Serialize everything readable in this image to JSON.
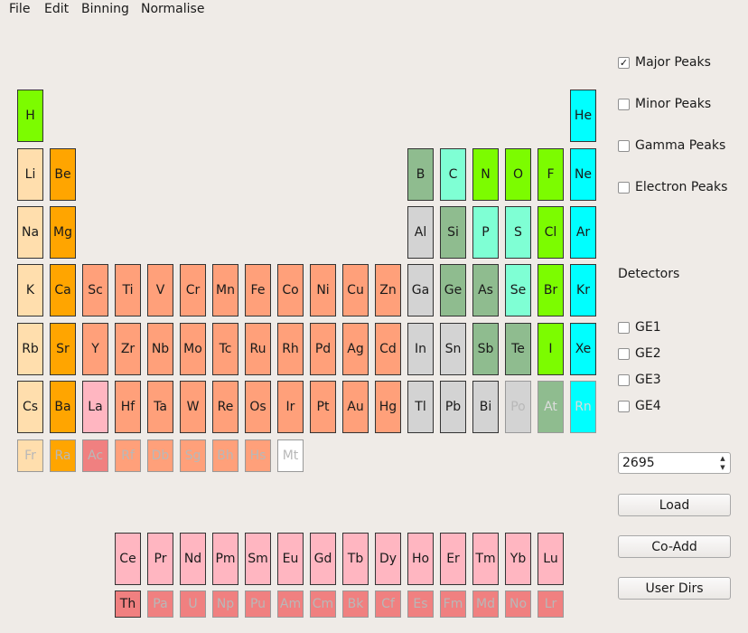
{
  "menu": [
    "File",
    "Edit",
    "Binning",
    "Normalise"
  ],
  "colors": {
    "alkali": "#ffdead",
    "alkaline_earth": "#ffa500",
    "transition": "#ffa07a",
    "post_transition": "#d3d3d3",
    "metalloid": "#8fbc8f",
    "nonmetal": "#7fffd4",
    "halogen": "#7cfc00",
    "noble_gas": "#00ffff",
    "lanthanide": "#ffb6c1",
    "actinide": "#f08080",
    "unknown": "#ffffff"
  },
  "elements": [
    {
      "symbol": "H",
      "row": 0,
      "col": 0,
      "group": "halogen",
      "enabled": true
    },
    {
      "symbol": "He",
      "row": 0,
      "col": 17,
      "group": "noble_gas",
      "enabled": true
    },
    {
      "symbol": "Li",
      "row": 1,
      "col": 0,
      "group": "alkali",
      "enabled": true
    },
    {
      "symbol": "Be",
      "row": 1,
      "col": 1,
      "group": "alkaline_earth",
      "enabled": true
    },
    {
      "symbol": "B",
      "row": 1,
      "col": 12,
      "group": "metalloid",
      "enabled": true
    },
    {
      "symbol": "C",
      "row": 1,
      "col": 13,
      "group": "nonmetal",
      "enabled": true
    },
    {
      "symbol": "N",
      "row": 1,
      "col": 14,
      "group": "halogen",
      "enabled": true
    },
    {
      "symbol": "O",
      "row": 1,
      "col": 15,
      "group": "halogen",
      "enabled": true
    },
    {
      "symbol": "F",
      "row": 1,
      "col": 16,
      "group": "halogen",
      "enabled": true
    },
    {
      "symbol": "Ne",
      "row": 1,
      "col": 17,
      "group": "noble_gas",
      "enabled": true
    },
    {
      "symbol": "Na",
      "row": 2,
      "col": 0,
      "group": "alkali",
      "enabled": true
    },
    {
      "symbol": "Mg",
      "row": 2,
      "col": 1,
      "group": "alkaline_earth",
      "enabled": true
    },
    {
      "symbol": "Al",
      "row": 2,
      "col": 12,
      "group": "post_transition",
      "enabled": true
    },
    {
      "symbol": "Si",
      "row": 2,
      "col": 13,
      "group": "metalloid",
      "enabled": true
    },
    {
      "symbol": "P",
      "row": 2,
      "col": 14,
      "group": "nonmetal",
      "enabled": true
    },
    {
      "symbol": "S",
      "row": 2,
      "col": 15,
      "group": "nonmetal",
      "enabled": true
    },
    {
      "symbol": "Cl",
      "row": 2,
      "col": 16,
      "group": "halogen",
      "enabled": true
    },
    {
      "symbol": "Ar",
      "row": 2,
      "col": 17,
      "group": "noble_gas",
      "enabled": true
    },
    {
      "symbol": "K",
      "row": 3,
      "col": 0,
      "group": "alkali",
      "enabled": true
    },
    {
      "symbol": "Ca",
      "row": 3,
      "col": 1,
      "group": "alkaline_earth",
      "enabled": true
    },
    {
      "symbol": "Sc",
      "row": 3,
      "col": 2,
      "group": "transition",
      "enabled": true
    },
    {
      "symbol": "Ti",
      "row": 3,
      "col": 3,
      "group": "transition",
      "enabled": true
    },
    {
      "symbol": "V",
      "row": 3,
      "col": 4,
      "group": "transition",
      "enabled": true
    },
    {
      "symbol": "Cr",
      "row": 3,
      "col": 5,
      "group": "transition",
      "enabled": true
    },
    {
      "symbol": "Mn",
      "row": 3,
      "col": 6,
      "group": "transition",
      "enabled": true
    },
    {
      "symbol": "Fe",
      "row": 3,
      "col": 7,
      "group": "transition",
      "enabled": true
    },
    {
      "symbol": "Co",
      "row": 3,
      "col": 8,
      "group": "transition",
      "enabled": true
    },
    {
      "symbol": "Ni",
      "row": 3,
      "col": 9,
      "group": "transition",
      "enabled": true
    },
    {
      "symbol": "Cu",
      "row": 3,
      "col": 10,
      "group": "transition",
      "enabled": true
    },
    {
      "symbol": "Zn",
      "row": 3,
      "col": 11,
      "group": "transition",
      "enabled": true
    },
    {
      "symbol": "Ga",
      "row": 3,
      "col": 12,
      "group": "post_transition",
      "enabled": true
    },
    {
      "symbol": "Ge",
      "row": 3,
      "col": 13,
      "group": "metalloid",
      "enabled": true
    },
    {
      "symbol": "As",
      "row": 3,
      "col": 14,
      "group": "metalloid",
      "enabled": true
    },
    {
      "symbol": "Se",
      "row": 3,
      "col": 15,
      "group": "nonmetal",
      "enabled": true
    },
    {
      "symbol": "Br",
      "row": 3,
      "col": 16,
      "group": "halogen",
      "enabled": true
    },
    {
      "symbol": "Kr",
      "row": 3,
      "col": 17,
      "group": "noble_gas",
      "enabled": true
    },
    {
      "symbol": "Rb",
      "row": 4,
      "col": 0,
      "group": "alkali",
      "enabled": true
    },
    {
      "symbol": "Sr",
      "row": 4,
      "col": 1,
      "group": "alkaline_earth",
      "enabled": true
    },
    {
      "symbol": "Y",
      "row": 4,
      "col": 2,
      "group": "transition",
      "enabled": true
    },
    {
      "symbol": "Zr",
      "row": 4,
      "col": 3,
      "group": "transition",
      "enabled": true
    },
    {
      "symbol": "Nb",
      "row": 4,
      "col": 4,
      "group": "transition",
      "enabled": true
    },
    {
      "symbol": "Mo",
      "row": 4,
      "col": 5,
      "group": "transition",
      "enabled": true
    },
    {
      "symbol": "Tc",
      "row": 4,
      "col": 6,
      "group": "transition",
      "enabled": true
    },
    {
      "symbol": "Ru",
      "row": 4,
      "col": 7,
      "group": "transition",
      "enabled": true
    },
    {
      "symbol": "Rh",
      "row": 4,
      "col": 8,
      "group": "transition",
      "enabled": true
    },
    {
      "symbol": "Pd",
      "row": 4,
      "col": 9,
      "group": "transition",
      "enabled": true
    },
    {
      "symbol": "Ag",
      "row": 4,
      "col": 10,
      "group": "transition",
      "enabled": true
    },
    {
      "symbol": "Cd",
      "row": 4,
      "col": 11,
      "group": "transition",
      "enabled": true
    },
    {
      "symbol": "In",
      "row": 4,
      "col": 12,
      "group": "post_transition",
      "enabled": true
    },
    {
      "symbol": "Sn",
      "row": 4,
      "col": 13,
      "group": "post_transition",
      "enabled": true
    },
    {
      "symbol": "Sb",
      "row": 4,
      "col": 14,
      "group": "metalloid",
      "enabled": true
    },
    {
      "symbol": "Te",
      "row": 4,
      "col": 15,
      "group": "metalloid",
      "enabled": true
    },
    {
      "symbol": "I",
      "row": 4,
      "col": 16,
      "group": "halogen",
      "enabled": true
    },
    {
      "symbol": "Xe",
      "row": 4,
      "col": 17,
      "group": "noble_gas",
      "enabled": true
    },
    {
      "symbol": "Cs",
      "row": 5,
      "col": 0,
      "group": "alkali",
      "enabled": true
    },
    {
      "symbol": "Ba",
      "row": 5,
      "col": 1,
      "group": "alkaline_earth",
      "enabled": true
    },
    {
      "symbol": "La",
      "row": 5,
      "col": 2,
      "group": "lanthanide",
      "enabled": true
    },
    {
      "symbol": "Hf",
      "row": 5,
      "col": 3,
      "group": "transition",
      "enabled": true
    },
    {
      "symbol": "Ta",
      "row": 5,
      "col": 4,
      "group": "transition",
      "enabled": true
    },
    {
      "symbol": "W",
      "row": 5,
      "col": 5,
      "group": "transition",
      "enabled": true
    },
    {
      "symbol": "Re",
      "row": 5,
      "col": 6,
      "group": "transition",
      "enabled": true
    },
    {
      "symbol": "Os",
      "row": 5,
      "col": 7,
      "group": "transition",
      "enabled": true
    },
    {
      "symbol": "Ir",
      "row": 5,
      "col": 8,
      "group": "transition",
      "enabled": true
    },
    {
      "symbol": "Pt",
      "row": 5,
      "col": 9,
      "group": "transition",
      "enabled": true
    },
    {
      "symbol": "Au",
      "row": 5,
      "col": 10,
      "group": "transition",
      "enabled": true
    },
    {
      "symbol": "Hg",
      "row": 5,
      "col": 11,
      "group": "transition",
      "enabled": true
    },
    {
      "symbol": "Tl",
      "row": 5,
      "col": 12,
      "group": "post_transition",
      "enabled": true
    },
    {
      "symbol": "Pb",
      "row": 5,
      "col": 13,
      "group": "post_transition",
      "enabled": true
    },
    {
      "symbol": "Bi",
      "row": 5,
      "col": 14,
      "group": "post_transition",
      "enabled": true
    },
    {
      "symbol": "Po",
      "row": 5,
      "col": 15,
      "group": "post_transition",
      "enabled": false
    },
    {
      "symbol": "At",
      "row": 5,
      "col": 16,
      "group": "metalloid",
      "enabled": false
    },
    {
      "symbol": "Rn",
      "row": 5,
      "col": 17,
      "group": "noble_gas",
      "enabled": false
    },
    {
      "symbol": "Fr",
      "row": 6,
      "col": 0,
      "group": "alkali",
      "enabled": false
    },
    {
      "symbol": "Ra",
      "row": 6,
      "col": 1,
      "group": "alkaline_earth",
      "enabled": false
    },
    {
      "symbol": "Ac",
      "row": 6,
      "col": 2,
      "group": "actinide",
      "enabled": false
    },
    {
      "symbol": "Rf",
      "row": 6,
      "col": 3,
      "group": "transition",
      "enabled": false
    },
    {
      "symbol": "Db",
      "row": 6,
      "col": 4,
      "group": "transition",
      "enabled": false
    },
    {
      "symbol": "Sg",
      "row": 6,
      "col": 5,
      "group": "transition",
      "enabled": false
    },
    {
      "symbol": "Bh",
      "row": 6,
      "col": 6,
      "group": "transition",
      "enabled": false
    },
    {
      "symbol": "Hs",
      "row": 6,
      "col": 7,
      "group": "transition",
      "enabled": false
    },
    {
      "symbol": "Mt",
      "row": 6,
      "col": 8,
      "group": "unknown",
      "enabled": false
    },
    {
      "symbol": "Ce",
      "row": 7,
      "col": 3,
      "group": "lanthanide",
      "enabled": true
    },
    {
      "symbol": "Pr",
      "row": 7,
      "col": 4,
      "group": "lanthanide",
      "enabled": true
    },
    {
      "symbol": "Nd",
      "row": 7,
      "col": 5,
      "group": "lanthanide",
      "enabled": true
    },
    {
      "symbol": "Pm",
      "row": 7,
      "col": 6,
      "group": "lanthanide",
      "enabled": true
    },
    {
      "symbol": "Sm",
      "row": 7,
      "col": 7,
      "group": "lanthanide",
      "enabled": true
    },
    {
      "symbol": "Eu",
      "row": 7,
      "col": 8,
      "group": "lanthanide",
      "enabled": true
    },
    {
      "symbol": "Gd",
      "row": 7,
      "col": 9,
      "group": "lanthanide",
      "enabled": true
    },
    {
      "symbol": "Tb",
      "row": 7,
      "col": 10,
      "group": "lanthanide",
      "enabled": true
    },
    {
      "symbol": "Dy",
      "row": 7,
      "col": 11,
      "group": "lanthanide",
      "enabled": true
    },
    {
      "symbol": "Ho",
      "row": 7,
      "col": 12,
      "group": "lanthanide",
      "enabled": true
    },
    {
      "symbol": "Er",
      "row": 7,
      "col": 13,
      "group": "lanthanide",
      "enabled": true
    },
    {
      "symbol": "Tm",
      "row": 7,
      "col": 14,
      "group": "lanthanide",
      "enabled": true
    },
    {
      "symbol": "Yb",
      "row": 7,
      "col": 15,
      "group": "lanthanide",
      "enabled": true
    },
    {
      "symbol": "Lu",
      "row": 7,
      "col": 16,
      "group": "lanthanide",
      "enabled": true
    },
    {
      "symbol": "Th",
      "row": 8,
      "col": 3,
      "group": "actinide",
      "enabled": true
    },
    {
      "symbol": "Pa",
      "row": 8,
      "col": 4,
      "group": "actinide",
      "enabled": false
    },
    {
      "symbol": "U",
      "row": 8,
      "col": 5,
      "group": "actinide",
      "enabled": false
    },
    {
      "symbol": "Np",
      "row": 8,
      "col": 6,
      "group": "actinide",
      "enabled": false
    },
    {
      "symbol": "Pu",
      "row": 8,
      "col": 7,
      "group": "actinide",
      "enabled": false
    },
    {
      "symbol": "Am",
      "row": 8,
      "col": 8,
      "group": "actinide",
      "enabled": false
    },
    {
      "symbol": "Cm",
      "row": 8,
      "col": 9,
      "group": "actinide",
      "enabled": false
    },
    {
      "symbol": "Bk",
      "row": 8,
      "col": 10,
      "group": "actinide",
      "enabled": false
    },
    {
      "symbol": "Cf",
      "row": 8,
      "col": 11,
      "group": "actinide",
      "enabled": false
    },
    {
      "symbol": "Es",
      "row": 8,
      "col": 12,
      "group": "actinide",
      "enabled": false
    },
    {
      "symbol": "Fm",
      "row": 8,
      "col": 13,
      "group": "actinide",
      "enabled": false
    },
    {
      "symbol": "Md",
      "row": 8,
      "col": 14,
      "group": "actinide",
      "enabled": false
    },
    {
      "symbol": "No",
      "row": 8,
      "col": 15,
      "group": "actinide",
      "enabled": false
    },
    {
      "symbol": "Lr",
      "row": 8,
      "col": 16,
      "group": "actinide",
      "enabled": false
    }
  ],
  "peaks": [
    {
      "label": "Major Peaks",
      "checked": true
    },
    {
      "label": "Minor Peaks",
      "checked": false
    },
    {
      "label": "Gamma Peaks",
      "checked": false
    },
    {
      "label": "Electron Peaks",
      "checked": false
    }
  ],
  "detectors": {
    "title": "Detectors",
    "items": [
      {
        "label": "GE1",
        "checked": false
      },
      {
        "label": "GE2",
        "checked": false
      },
      {
        "label": "GE3",
        "checked": false
      },
      {
        "label": "GE4",
        "checked": false
      }
    ]
  },
  "run_number": "2695",
  "buttons": {
    "load": "Load",
    "coadd": "Co-Add",
    "userdirs": "User Dirs"
  }
}
